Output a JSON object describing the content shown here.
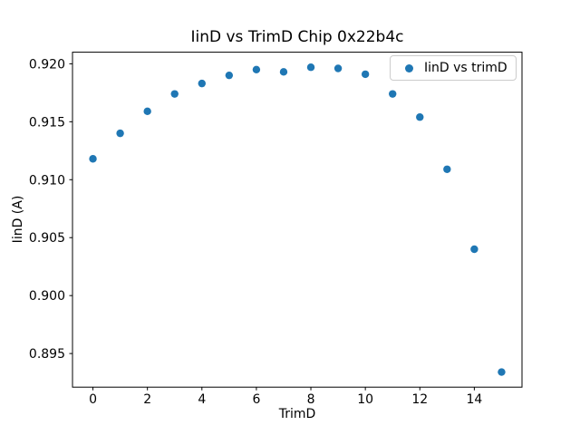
{
  "chart_data": {
    "type": "scatter",
    "title": "IinD vs TrimD Chip 0x22b4c",
    "xlabel": "TrimD",
    "ylabel": "IinD (A)",
    "x": [
      0,
      1,
      2,
      3,
      4,
      5,
      6,
      7,
      8,
      9,
      10,
      11,
      12,
      13,
      14,
      15
    ],
    "series": [
      {
        "name": "IinD vs trimD",
        "values": [
          0.9118,
          0.914,
          0.9159,
          0.9174,
          0.9183,
          0.919,
          0.9195,
          0.9193,
          0.9197,
          0.9196,
          0.9191,
          0.9174,
          0.9154,
          0.9109,
          0.904,
          0.8934
        ],
        "color": "#1f77b4",
        "marker": "circle"
      }
    ],
    "xlim": [
      -0.75,
      15.75
    ],
    "ylim": [
      0.8921,
      0.921
    ],
    "xticks": [
      0,
      2,
      4,
      6,
      8,
      10,
      12,
      14
    ],
    "yticks": [
      0.895,
      0.9,
      0.905,
      0.91,
      0.915,
      0.92
    ],
    "ytick_decimals": 3,
    "grid": false,
    "legend": {
      "position": "upper right",
      "entries": [
        "IinD vs trimD"
      ]
    }
  },
  "colors": {
    "marker": "#1f77b4",
    "spine": "#000000",
    "legend_border": "#cccccc",
    "background": "#ffffff"
  }
}
